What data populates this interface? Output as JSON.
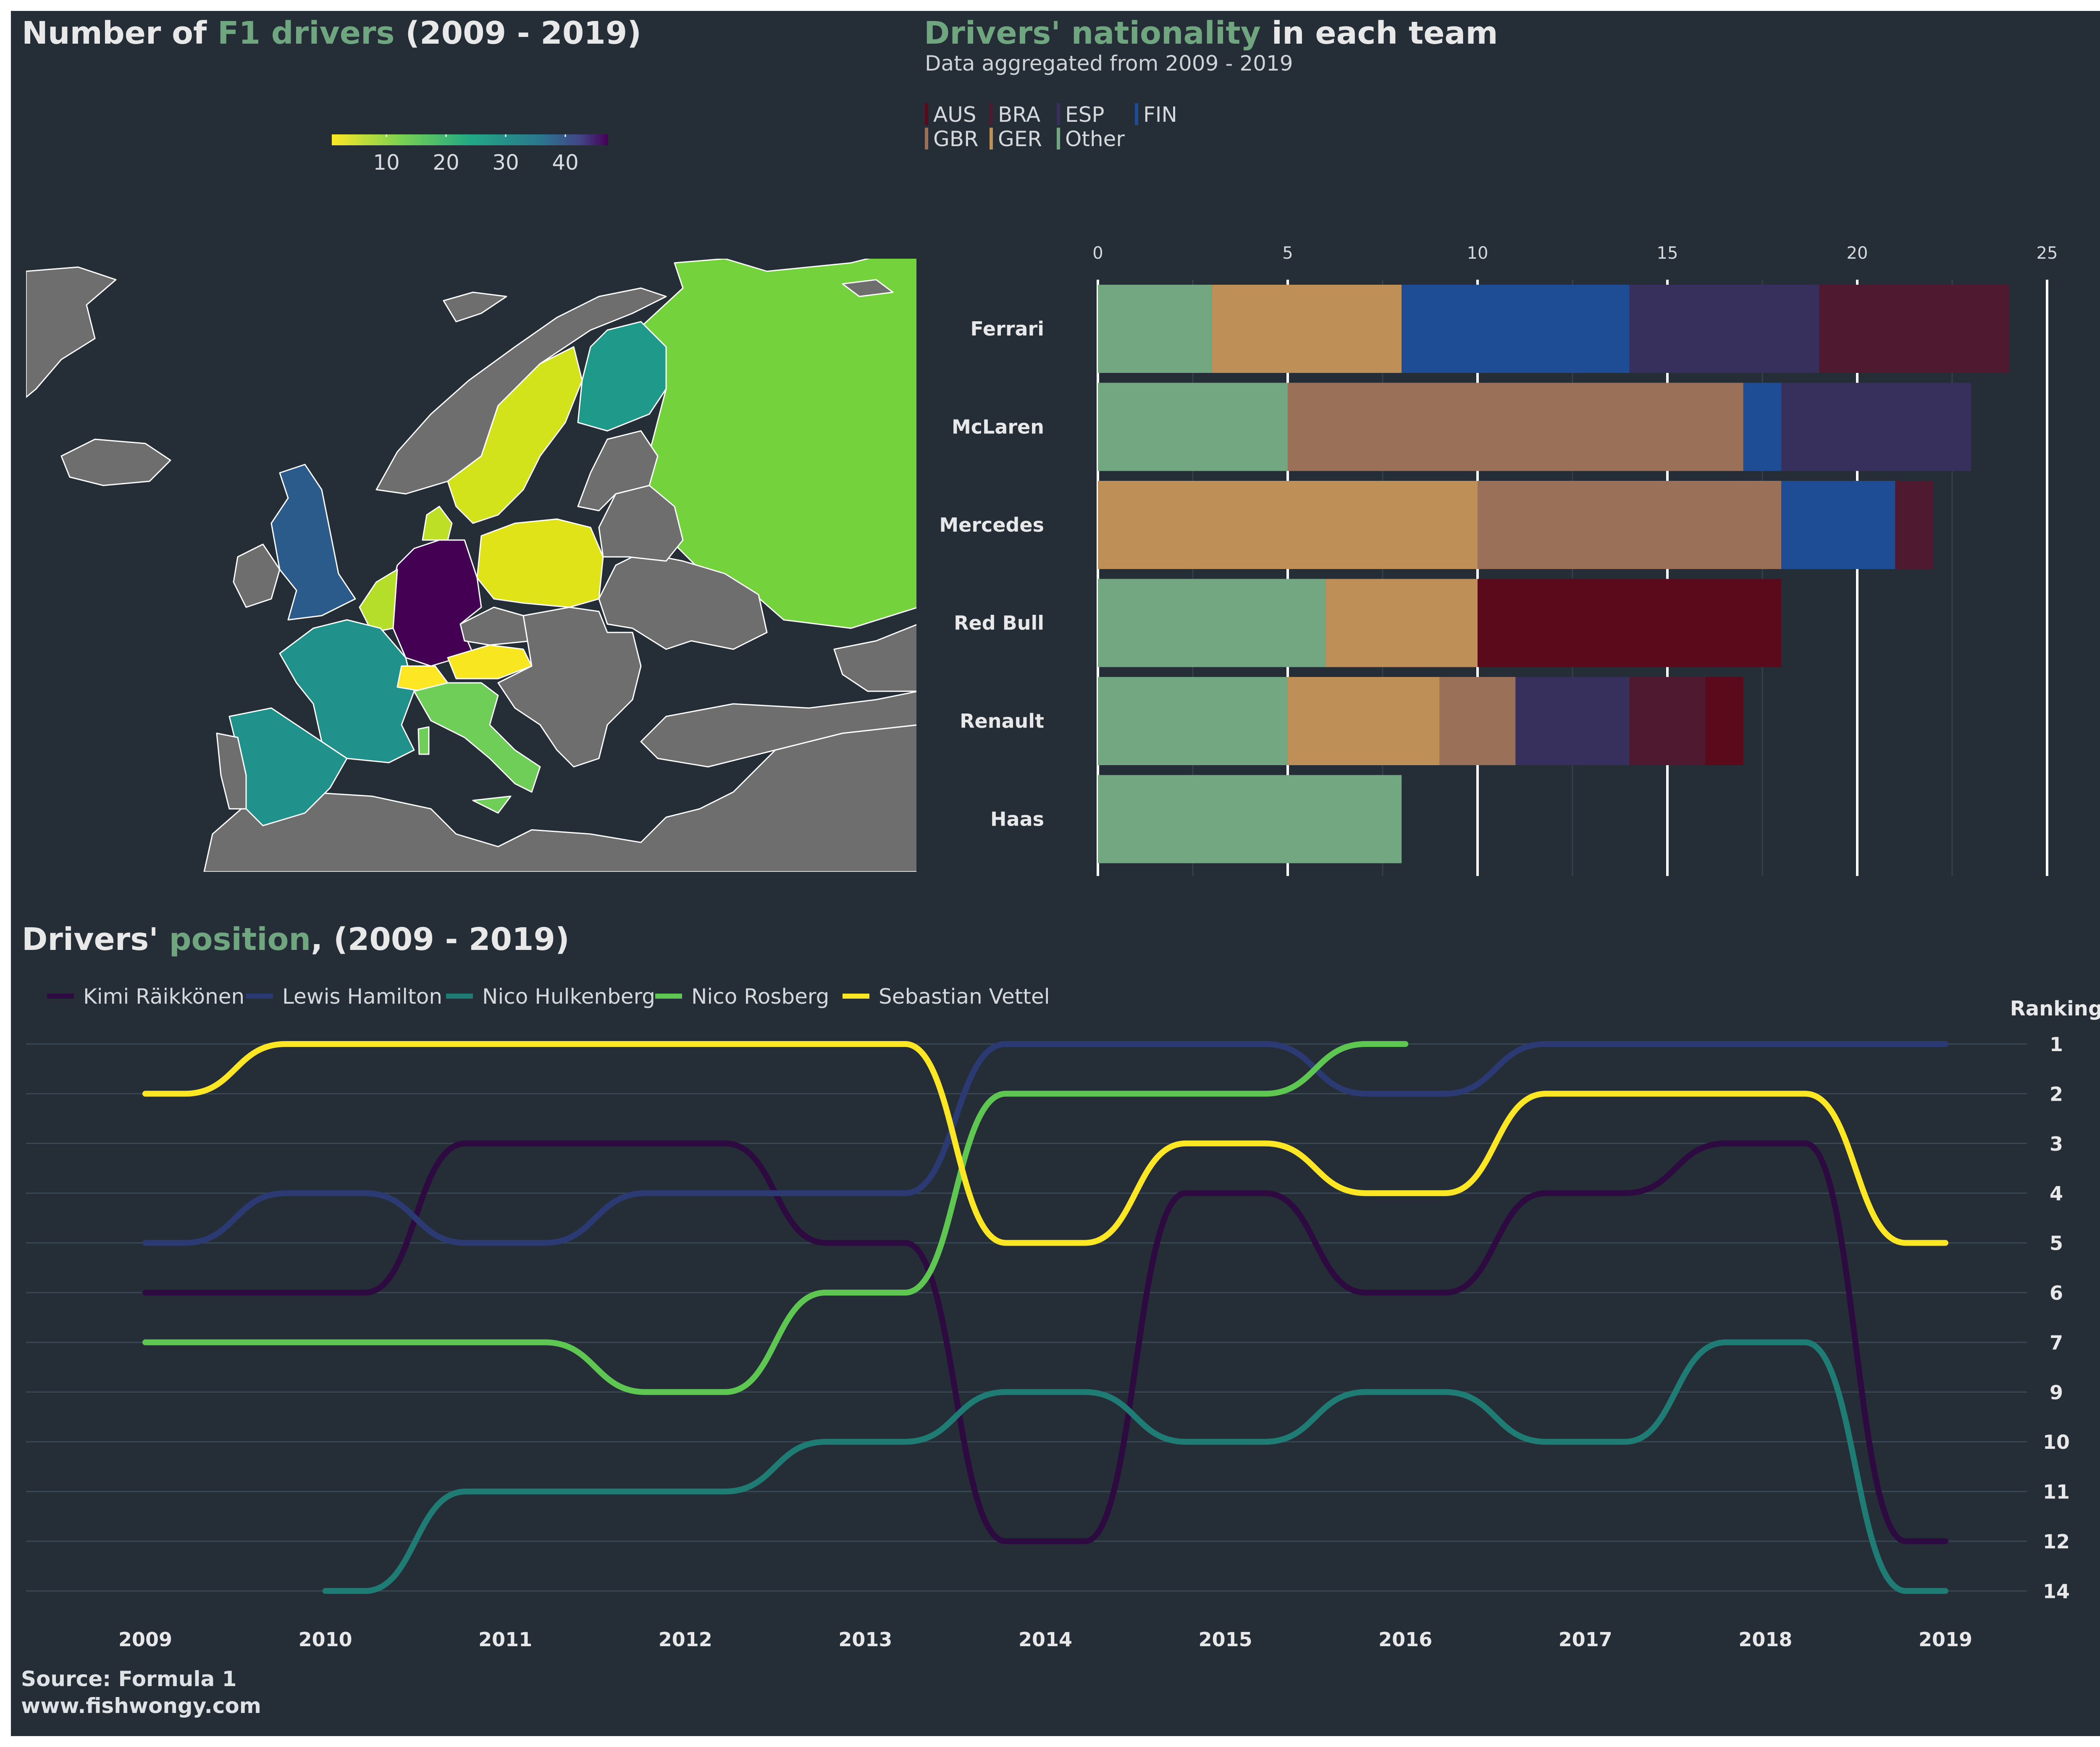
{
  "map_panel": {
    "title": {
      "pre": "Number of ",
      "hl": "F1 drivers",
      "post": " (2009 - 2019)"
    },
    "colorbar": {
      "ticks": [
        "10",
        "20",
        "30",
        "40"
      ]
    }
  },
  "bar_panel": {
    "title": {
      "hl": "Drivers' nationality",
      "post": " in each team"
    },
    "subtitle": "Data aggregated from 2009 - 2019"
  },
  "line_panel": {
    "title": {
      "pre": "Drivers' ",
      "hl": "position",
      "post": ", (2009 - 2019)"
    }
  },
  "source": {
    "line1": "Source: Formula 1",
    "line2": "www.fishwongy.com"
  },
  "colors": {
    "panel_bg": "#252d37",
    "accent": "#6fa67f",
    "AUS": "#5b0a1c",
    "BRA": "#4f1930",
    "ESP": "#37305c",
    "FIN": "#1f4d95",
    "GBR": "#9a7158",
    "GER": "#be8f56",
    "Other": "#72a781",
    "land_gray": "#6e6e6e"
  },
  "chart_data": [
    {
      "type": "choropleth",
      "title": "Number of F1 drivers (2009 - 2019)",
      "colorbar_ticks": [
        10,
        20,
        30,
        40
      ],
      "colorscale": "viridis (reversed: yellow = low, purple = high)"
    },
    {
      "type": "bar",
      "orientation": "horizontal",
      "stacked": true,
      "title": "Drivers' nationality in each team",
      "subtitle": "Data aggregated from 2009 - 2019",
      "categories": [
        "Ferrari",
        "McLaren",
        "Mercedes",
        "Red Bull",
        "Renault",
        "Haas"
      ],
      "legend": [
        "AUS",
        "BRA",
        "ESP",
        "FIN",
        "GBR",
        "GER",
        "Other"
      ],
      "series": [
        {
          "name": "Other",
          "values": [
            3,
            5,
            0,
            6,
            5,
            8
          ]
        },
        {
          "name": "GER",
          "values": [
            5,
            0,
            10,
            4,
            4,
            0
          ]
        },
        {
          "name": "GBR",
          "values": [
            0,
            12,
            8,
            0,
            2,
            0
          ]
        },
        {
          "name": "FIN",
          "values": [
            6,
            1,
            3,
            0,
            0,
            0
          ]
        },
        {
          "name": "ESP",
          "values": [
            5,
            5,
            0,
            0,
            3,
            0
          ]
        },
        {
          "name": "BRA",
          "values": [
            5,
            0,
            1,
            0,
            2,
            0
          ]
        },
        {
          "name": "AUS",
          "values": [
            0,
            0,
            0,
            8,
            1,
            0
          ]
        }
      ],
      "xlim": [
        0,
        25
      ],
      "x_ticks": [
        0,
        5,
        10,
        15,
        20,
        25
      ],
      "legend_position": "top-left"
    },
    {
      "type": "line",
      "title": "Drivers' position, (2009 - 2019)",
      "ylabel": "Ranking",
      "x": [
        2009,
        2010,
        2011,
        2012,
        2013,
        2014,
        2015,
        2016,
        2017,
        2018,
        2019
      ],
      "y_ticks": [
        1,
        2,
        3,
        4,
        5,
        6,
        7,
        9,
        10,
        11,
        12,
        14
      ],
      "y_reversed": true,
      "legend_position": "top-left",
      "series": [
        {
          "name": "Kimi Räikkönen",
          "color": "#2d0a3f",
          "values": [
            6,
            6,
            3,
            3,
            5,
            12,
            4,
            6,
            4,
            3,
            12
          ]
        },
        {
          "name": "Lewis Hamilton",
          "color": "#2b3a73",
          "values": [
            5,
            4,
            5,
            4,
            4,
            1,
            1,
            2,
            1,
            1,
            1
          ]
        },
        {
          "name": "Nico Hulkenberg",
          "color": "#1f7c74",
          "values": [
            null,
            14,
            11,
            11,
            10,
            9,
            10,
            9,
            10,
            7,
            14
          ]
        },
        {
          "name": "Nico Rosberg",
          "color": "#5ec752",
          "values": [
            7,
            7,
            7,
            9,
            6,
            2,
            2,
            1,
            null,
            null,
            null
          ]
        },
        {
          "name": "Sebastian Vettel",
          "color": "#fde725",
          "values": [
            2,
            1,
            1,
            1,
            1,
            5,
            3,
            4,
            2,
            2,
            5
          ]
        }
      ]
    }
  ]
}
